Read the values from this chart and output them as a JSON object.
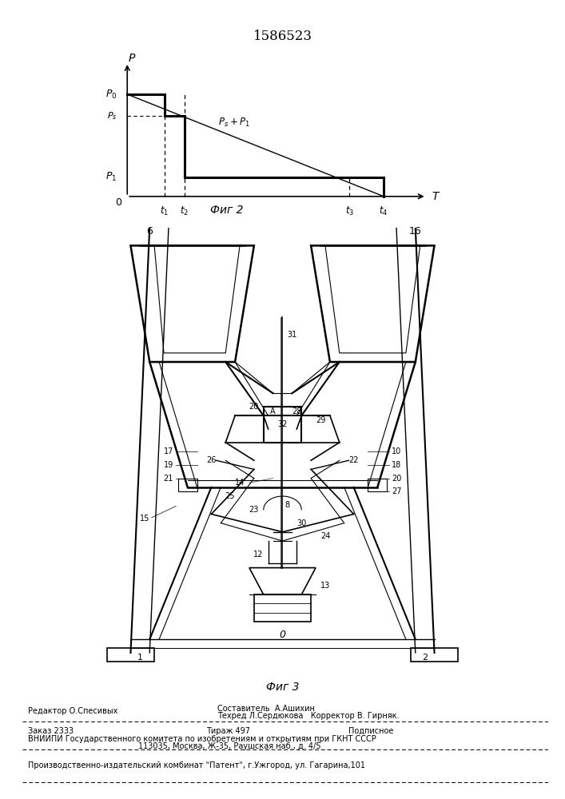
{
  "patent_number": "1586523",
  "graph": {
    "caption": "Фиг 2",
    "p_label": "P",
    "t_label": "T",
    "p0_label": "P_0",
    "ps_label": "P_s",
    "ps_p1_label": "P_s+P_1",
    "p1_label": "P_1",
    "o_label": "0",
    "t1_label": "t_1",
    "t2_label": "t_2",
    "t3_label": "t_3",
    "t4_label": "t_4"
  },
  "fig3_caption": "Фиг 3",
  "footer": {
    "editor": "Редактор О.Спесивых",
    "compiler": "Составитель  А.Ашихин",
    "techred": "Техред Л.Сердюкова   Корректор В. Гирняк.",
    "order": "Заказ 2333",
    "tirazh": "Тираж 497",
    "podpisnoe": "Подписное",
    "vniipи_line1": "ВНИИПИ Государственного комитета по изобретениям и открытиям при ГКНТ СССР",
    "vniipи_line2": "113035, Москва, Ж-35, Раушская наб., д. 4/5",
    "patent_plant": "Производственно-издательский комбинат \"Патент\", г.Ужгород, ул. Гагарина,101"
  }
}
